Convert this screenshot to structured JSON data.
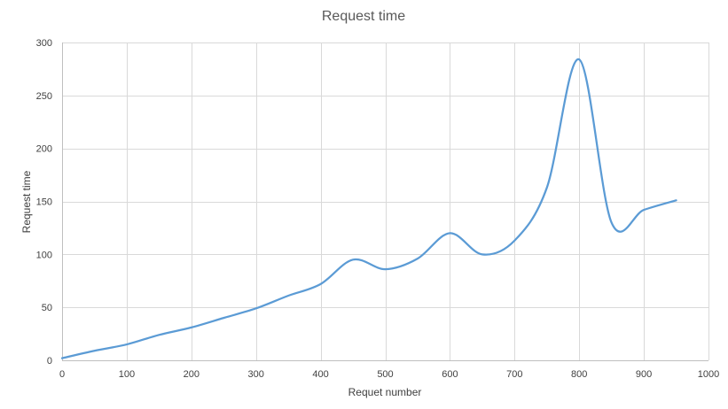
{
  "chart_data": {
    "type": "line",
    "title": "Request time",
    "xlabel": "Requet number",
    "ylabel": "Request time",
    "xlim": [
      0,
      1000
    ],
    "ylim": [
      0,
      300
    ],
    "x_ticks": [
      0,
      100,
      200,
      300,
      400,
      500,
      600,
      700,
      800,
      900,
      1000
    ],
    "y_ticks": [
      0,
      50,
      100,
      150,
      200,
      250,
      300
    ],
    "grid": true,
    "smooth": true,
    "series": [
      {
        "color": "#5b9bd5",
        "x": [
          0,
          50,
          100,
          150,
          200,
          250,
          300,
          350,
          400,
          450,
          500,
          550,
          600,
          650,
          700,
          750,
          800,
          850,
          900,
          950
        ],
        "y": [
          2,
          9,
          15,
          24,
          31,
          40,
          49,
          61,
          72,
          95,
          86,
          96,
          120,
          100,
          113,
          163,
          284,
          130,
          142,
          151
        ]
      }
    ]
  }
}
